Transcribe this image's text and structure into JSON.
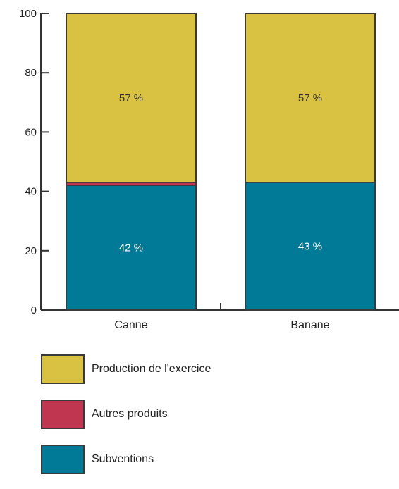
{
  "chart_data": {
    "type": "bar",
    "stacked": true,
    "categories": [
      "Canne",
      "Banane"
    ],
    "series": [
      {
        "name": "Subventions",
        "values": [
          42,
          43
        ],
        "labels": [
          "42 %",
          "43 %"
        ],
        "color": "#007a96",
        "label_color": "#ffffff"
      },
      {
        "name": "Autres produits",
        "values": [
          1,
          0
        ],
        "labels": [
          "",
          ""
        ],
        "color": "#c0354f",
        "label_color": "#ffffff"
      },
      {
        "name": "Production de l'exercice",
        "values": [
          57,
          57
        ],
        "labels": [
          "57 %",
          "57 %"
        ],
        "color": "#d9c142",
        "label_color": "#333333"
      }
    ],
    "ylim": [
      0,
      100
    ],
    "yticks": [
      0,
      20,
      40,
      60,
      80,
      100
    ],
    "title": "",
    "xlabel": "",
    "ylabel": "",
    "legend_position": "bottom-left"
  },
  "legend": [
    {
      "label": "Production de l'exercice",
      "color": "#d9c142"
    },
    {
      "label": "Autres produits",
      "color": "#c0354f"
    },
    {
      "label": "Subventions",
      "color": "#007a96"
    }
  ]
}
